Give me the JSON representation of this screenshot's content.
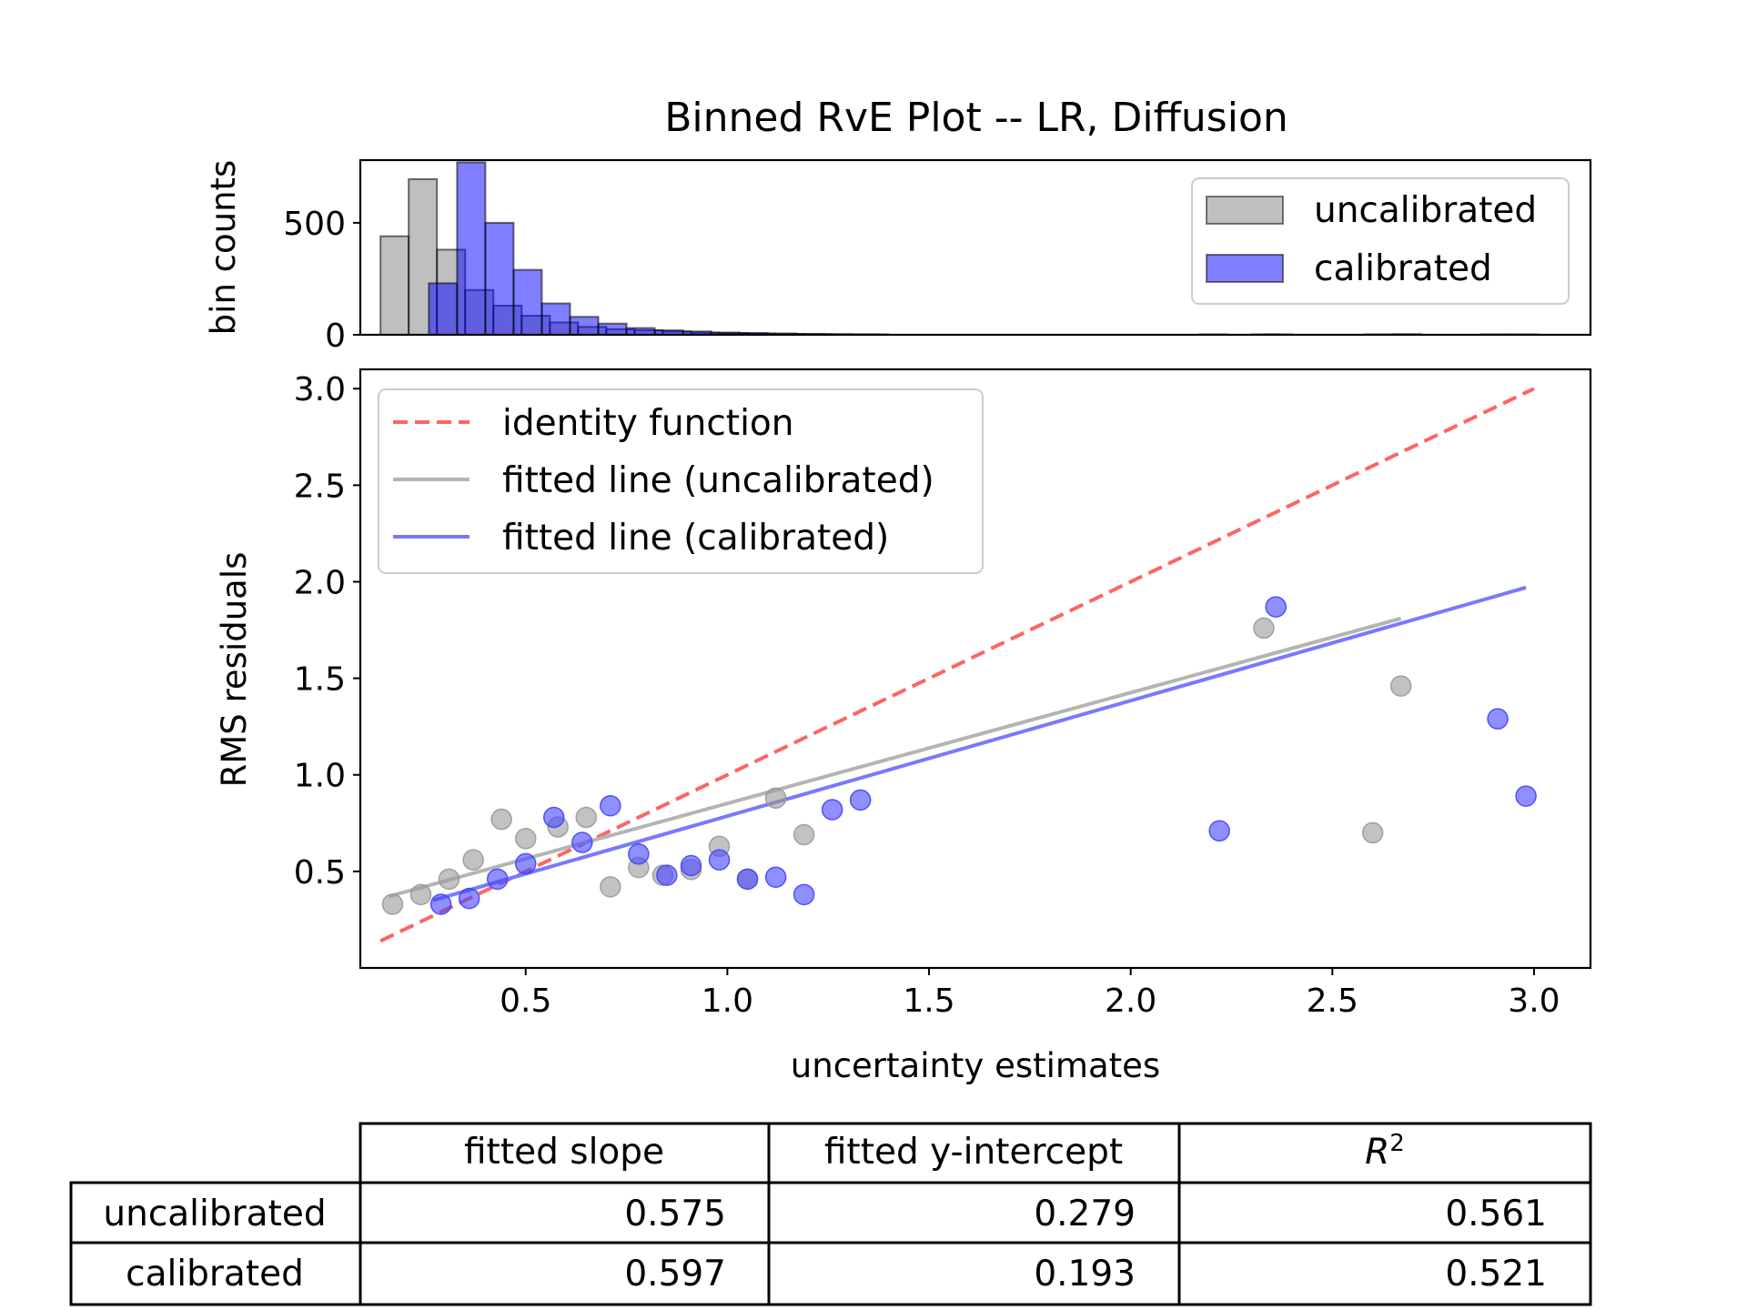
{
  "chart_data": [
    {
      "type": "bar",
      "title": "Binned RvE Plot -- LR, Diffusion",
      "ylabel": "bin counts",
      "xlim": [
        0.09,
        3.14
      ],
      "ylim": [
        0,
        780
      ],
      "yticks": [
        0,
        500
      ],
      "legend": "top-right",
      "series": [
        {
          "name": "uncalibrated",
          "color": "#808080",
          "bins": [
            {
              "x0": 0.14,
              "x1": 0.21,
              "count": 440
            },
            {
              "x0": 0.21,
              "x1": 0.28,
              "count": 695
            },
            {
              "x0": 0.28,
              "x1": 0.35,
              "count": 380
            },
            {
              "x0": 0.35,
              "x1": 0.42,
              "count": 200
            },
            {
              "x0": 0.42,
              "x1": 0.49,
              "count": 130
            },
            {
              "x0": 0.49,
              "x1": 0.56,
              "count": 85
            },
            {
              "x0": 0.56,
              "x1": 0.63,
              "count": 55
            },
            {
              "x0": 0.63,
              "x1": 0.7,
              "count": 35
            },
            {
              "x0": 0.7,
              "x1": 0.77,
              "count": 25
            },
            {
              "x0": 0.77,
              "x1": 0.84,
              "count": 20
            },
            {
              "x0": 0.84,
              "x1": 0.91,
              "count": 15
            },
            {
              "x0": 0.91,
              "x1": 0.98,
              "count": 10
            },
            {
              "x0": 0.98,
              "x1": 1.05,
              "count": 8
            },
            {
              "x0": 1.05,
              "x1": 1.12,
              "count": 6
            },
            {
              "x0": 1.12,
              "x1": 1.19,
              "count": 4
            },
            {
              "x0": 1.19,
              "x1": 1.26,
              "count": 3
            },
            {
              "x0": 1.26,
              "x1": 1.33,
              "count": 2
            },
            {
              "x0": 1.33,
              "x1": 1.4,
              "count": 2
            },
            {
              "x0": 2.3,
              "x1": 2.37,
              "count": 2
            },
            {
              "x0": 2.58,
              "x1": 2.65,
              "count": 2
            },
            {
              "x0": 2.65,
              "x1": 2.72,
              "count": 3
            }
          ]
        },
        {
          "name": "calibrated",
          "color": "#0000ff",
          "bins": [
            {
              "x0": 0.26,
              "x1": 0.33,
              "count": 230
            },
            {
              "x0": 0.33,
              "x1": 0.4,
              "count": 770
            },
            {
              "x0": 0.4,
              "x1": 0.47,
              "count": 500
            },
            {
              "x0": 0.47,
              "x1": 0.54,
              "count": 290
            },
            {
              "x0": 0.54,
              "x1": 0.61,
              "count": 140
            },
            {
              "x0": 0.61,
              "x1": 0.68,
              "count": 80
            },
            {
              "x0": 0.68,
              "x1": 0.75,
              "count": 50
            },
            {
              "x0": 0.75,
              "x1": 0.82,
              "count": 30
            },
            {
              "x0": 0.82,
              "x1": 0.89,
              "count": 20
            },
            {
              "x0": 0.89,
              "x1": 0.96,
              "count": 15
            },
            {
              "x0": 0.96,
              "x1": 1.03,
              "count": 10
            },
            {
              "x0": 1.03,
              "x1": 1.1,
              "count": 8
            },
            {
              "x0": 1.1,
              "x1": 1.17,
              "count": 6
            },
            {
              "x0": 1.17,
              "x1": 1.24,
              "count": 4
            },
            {
              "x0": 1.24,
              "x1": 1.31,
              "count": 3
            },
            {
              "x0": 1.31,
              "x1": 1.38,
              "count": 2
            },
            {
              "x0": 2.17,
              "x1": 2.24,
              "count": 2
            },
            {
              "x0": 2.33,
              "x1": 2.4,
              "count": 2
            },
            {
              "x0": 2.87,
              "x1": 2.94,
              "count": 2
            },
            {
              "x0": 2.94,
              "x1": 3.01,
              "count": 2
            }
          ]
        }
      ]
    },
    {
      "type": "scatter",
      "xlabel": "uncertainty estimates",
      "ylabel": "RMS residuals",
      "xlim": [
        0.09,
        3.14
      ],
      "ylim": [
        0.0,
        3.1
      ],
      "xticks": [
        "0.5",
        "1.0",
        "1.5",
        "2.0",
        "2.5",
        "3.0"
      ],
      "yticks": [
        "0.5",
        "1.0",
        "1.5",
        "2.0",
        "2.5",
        "3.0"
      ],
      "legend": "top-left",
      "lines": [
        {
          "name": "identity function",
          "color": "#ff6464",
          "style": "dashed",
          "points": [
            [
              0.14,
              0.14
            ],
            [
              3.0,
              3.0
            ]
          ]
        },
        {
          "name": "fitted line (uncalibrated)",
          "color": "#b4b4b4",
          "style": "solid",
          "points": [
            [
              0.16,
              0.37
            ],
            [
              2.67,
              1.81
            ]
          ]
        },
        {
          "name": "fitted line (calibrated)",
          "color": "#7878ff",
          "style": "solid",
          "points": [
            [
              0.27,
              0.35
            ],
            [
              2.98,
              1.97
            ]
          ]
        }
      ],
      "series": [
        {
          "name": "uncalibrated",
          "color": "#999999",
          "points": [
            [
              0.17,
              0.33
            ],
            [
              0.24,
              0.38
            ],
            [
              0.31,
              0.46
            ],
            [
              0.37,
              0.56
            ],
            [
              0.44,
              0.77
            ],
            [
              0.5,
              0.67
            ],
            [
              0.58,
              0.73
            ],
            [
              0.65,
              0.78
            ],
            [
              0.71,
              0.42
            ],
            [
              0.78,
              0.52
            ],
            [
              0.84,
              0.48
            ],
            [
              0.91,
              0.51
            ],
            [
              0.98,
              0.63
            ],
            [
              1.05,
              0.46
            ],
            [
              1.12,
              0.88
            ],
            [
              1.19,
              0.69
            ],
            [
              2.33,
              1.76
            ],
            [
              2.6,
              0.7
            ],
            [
              2.67,
              1.46
            ]
          ]
        },
        {
          "name": "calibrated",
          "color": "#4444ff",
          "points": [
            [
              0.29,
              0.33
            ],
            [
              0.36,
              0.36
            ],
            [
              0.43,
              0.46
            ],
            [
              0.5,
              0.54
            ],
            [
              0.57,
              0.78
            ],
            [
              0.64,
              0.65
            ],
            [
              0.71,
              0.84
            ],
            [
              0.78,
              0.59
            ],
            [
              0.85,
              0.48
            ],
            [
              0.91,
              0.53
            ],
            [
              0.98,
              0.56
            ],
            [
              1.05,
              0.46
            ],
            [
              1.12,
              0.47
            ],
            [
              1.19,
              0.38
            ],
            [
              1.26,
              0.82
            ],
            [
              1.33,
              0.87
            ],
            [
              2.22,
              0.71
            ],
            [
              2.36,
              1.87
            ],
            [
              2.91,
              1.29
            ],
            [
              2.98,
              0.89
            ]
          ]
        }
      ]
    },
    {
      "type": "table",
      "columns": [
        "fitted slope",
        "fitted y-intercept",
        "R2"
      ],
      "rows": [
        {
          "label": "uncalibrated",
          "values": [
            "0.575",
            "0.279",
            "0.561"
          ]
        },
        {
          "label": "calibrated",
          "values": [
            "0.597",
            "0.193",
            "0.521"
          ]
        }
      ]
    }
  ]
}
